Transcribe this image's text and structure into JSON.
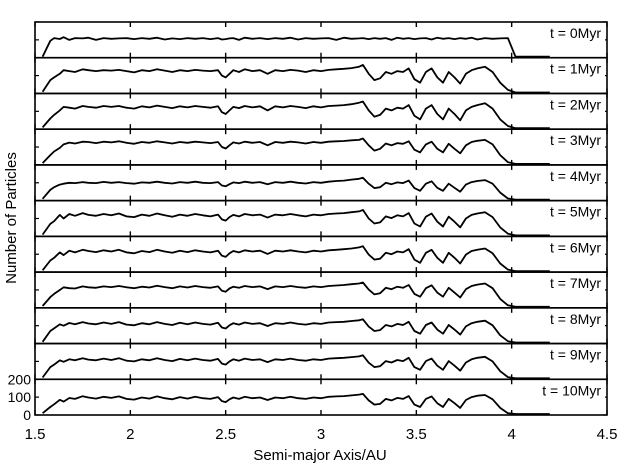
{
  "chart_data": {
    "type": "line",
    "xlabel": "Semi-major Axis/AU",
    "ylabel": "Number of Particles",
    "xlim": [
      1.5,
      4.5
    ],
    "x_ticks": [
      1.5,
      2,
      2.5,
      3,
      3.5,
      4,
      4.5
    ],
    "x_tick_labels": [
      "1.5",
      "2",
      "2.5",
      "3",
      "3.5",
      "4",
      "4.5"
    ],
    "panel_ylim": [
      0,
      200
    ],
    "y_ticks_bottom_panel": [
      0,
      100,
      200
    ],
    "y_tick_labels_bottom_panel": [
      "0",
      "100",
      "200"
    ],
    "x": [
      1.54,
      1.58,
      1.6,
      1.63,
      1.65,
      1.68,
      1.71,
      1.75,
      1.78,
      1.82,
      1.86,
      1.9,
      1.94,
      1.98,
      2.02,
      2.06,
      2.1,
      2.14,
      2.18,
      2.22,
      2.26,
      2.3,
      2.34,
      2.38,
      2.42,
      2.46,
      2.48,
      2.5,
      2.52,
      2.54,
      2.57,
      2.6,
      2.64,
      2.68,
      2.72,
      2.76,
      2.8,
      2.84,
      2.88,
      2.92,
      2.96,
      3.0,
      3.04,
      3.08,
      3.12,
      3.16,
      3.2,
      3.22,
      3.25,
      3.28,
      3.31,
      3.34,
      3.37,
      3.4,
      3.43,
      3.46,
      3.49,
      3.52,
      3.55,
      3.58,
      3.61,
      3.64,
      3.67,
      3.7,
      3.73,
      3.76,
      3.79,
      3.82,
      3.86,
      3.9,
      3.94,
      3.98,
      4.02,
      4.06,
      4.1,
      4.15,
      4.2
    ],
    "series": [
      {
        "name": "t = 0Myr",
        "values": [
          0,
          95,
          110,
          105,
          115,
          100,
          110,
          108,
          112,
          100,
          110,
          106,
          108,
          110,
          104,
          110,
          106,
          112,
          102,
          108,
          104,
          110,
          106,
          110,
          104,
          110,
          102,
          104,
          108,
          110,
          100,
          112,
          106,
          110,
          104,
          110,
          106,
          112,
          102,
          110,
          106,
          108,
          110,
          100,
          112,
          106,
          108,
          110,
          104,
          110,
          106,
          110,
          100,
          112,
          106,
          110,
          104,
          108,
          110,
          102,
          112,
          106,
          110,
          104,
          110,
          106,
          112,
          102,
          110,
          106,
          108,
          110,
          0,
          0,
          0,
          0,
          0
        ]
      },
      {
        "name": "t = 1Myr",
        "values": [
          10,
          75,
          90,
          110,
          130,
          125,
          120,
          135,
          130,
          125,
          130,
          128,
          132,
          125,
          118,
          130,
          125,
          135,
          128,
          120,
          130,
          125,
          132,
          128,
          125,
          130,
          100,
          90,
          110,
          130,
          120,
          135,
          125,
          130,
          110,
          130,
          125,
          132,
          128,
          120,
          130,
          125,
          132,
          135,
          138,
          142,
          150,
          160,
          110,
          75,
          85,
          120,
          110,
          125,
          120,
          140,
          80,
          60,
          120,
          140,
          90,
          60,
          120,
          90,
          55,
          110,
          130,
          140,
          150,
          120,
          60,
          20,
          5,
          3,
          0,
          0,
          0
        ]
      },
      {
        "name": "t = 2Myr",
        "values": [
          10,
          60,
          80,
          105,
          125,
          120,
          115,
          130,
          125,
          120,
          130,
          125,
          130,
          120,
          115,
          128,
          122,
          132,
          125,
          118,
          128,
          122,
          130,
          125,
          120,
          128,
          95,
          85,
          105,
          125,
          118,
          130,
          122,
          128,
          105,
          128,
          122,
          130,
          125,
          118,
          128,
          122,
          130,
          132,
          135,
          140,
          148,
          155,
          105,
          70,
          80,
          115,
          105,
          120,
          115,
          135,
          75,
          55,
          115,
          135,
          85,
          55,
          115,
          85,
          50,
          105,
          125,
          135,
          145,
          115,
          55,
          18,
          5,
          2,
          0,
          0,
          0
        ]
      },
      {
        "name": "t = 3Myr",
        "values": [
          10,
          55,
          75,
          95,
          115,
          125,
          120,
          130,
          128,
          122,
          130,
          126,
          132,
          124,
          118,
          128,
          124,
          132,
          126,
          120,
          128,
          124,
          130,
          126,
          122,
          128,
          100,
          92,
          110,
          126,
          120,
          130,
          124,
          128,
          110,
          128,
          124,
          130,
          126,
          120,
          128,
          124,
          130,
          132,
          134,
          138,
          140,
          148,
          110,
          80,
          90,
          120,
          110,
          122,
          118,
          132,
          85,
          70,
          115,
          130,
          90,
          70,
          118,
          90,
          65,
          110,
          128,
          135,
          140,
          115,
          55,
          15,
          5,
          2,
          0,
          0,
          0
        ]
      },
      {
        "name": "t = 4Myr",
        "values": [
          10,
          60,
          75,
          90,
          95,
          100,
          98,
          104,
          100,
          98,
          105,
          100,
          104,
          98,
          95,
          102,
          100,
          106,
          100,
          96,
          104,
          100,
          106,
          100,
          98,
          104,
          85,
          80,
          92,
          102,
          98,
          106,
          100,
          104,
          92,
          104,
          100,
          106,
          100,
          96,
          104,
          100,
          106,
          110,
          112,
          118,
          122,
          128,
          95,
          70,
          75,
          100,
          92,
          102,
          98,
          112,
          70,
          55,
          95,
          108,
          72,
          55,
          95,
          72,
          50,
          90,
          104,
          110,
          115,
          95,
          45,
          12,
          4,
          2,
          0,
          0,
          0
        ]
      },
      {
        "name": "t = 5Myr",
        "values": [
          10,
          70,
          85,
          120,
          100,
          125,
          115,
          130,
          120,
          115,
          125,
          118,
          128,
          112,
          108,
          122,
          115,
          128,
          118,
          110,
          122,
          115,
          125,
          118,
          112,
          122,
          95,
          88,
          108,
          120,
          112,
          125,
          118,
          122,
          105,
          122,
          118,
          125,
          118,
          112,
          122,
          118,
          125,
          128,
          130,
          135,
          140,
          148,
          100,
          72,
          78,
          112,
          102,
          118,
          112,
          130,
          72,
          55,
          110,
          128,
          82,
          55,
          110,
          82,
          50,
          100,
          120,
          128,
          135,
          108,
          50,
          15,
          5,
          2,
          0,
          0,
          0
        ]
      },
      {
        "name": "t = 6Myr",
        "values": [
          10,
          65,
          80,
          110,
          95,
          120,
          110,
          125,
          118,
          112,
          122,
          115,
          125,
          110,
          105,
          118,
          112,
          125,
          115,
          108,
          120,
          112,
          122,
          115,
          110,
          120,
          92,
          85,
          105,
          118,
          110,
          122,
          115,
          120,
          102,
          120,
          115,
          122,
          115,
          110,
          120,
          115,
          122,
          125,
          128,
          132,
          138,
          145,
          98,
          70,
          75,
          108,
          100,
          115,
          110,
          128,
          70,
          52,
          108,
          125,
          80,
          52,
          108,
          80,
          48,
          98,
          118,
          125,
          132,
          105,
          48,
          14,
          5,
          2,
          0,
          0,
          0
        ]
      },
      {
        "name": "t = 7Myr",
        "values": [
          10,
          60,
          78,
          100,
          115,
          110,
          108,
          120,
          115,
          112,
          120,
          116,
          122,
          115,
          110,
          118,
          114,
          124,
          116,
          110,
          120,
          114,
          122,
          116,
          112,
          120,
          95,
          90,
          108,
          118,
          112,
          122,
          116,
          120,
          105,
          120,
          116,
          122,
          116,
          112,
          120,
          116,
          122,
          125,
          128,
          132,
          136,
          142,
          102,
          75,
          82,
          112,
          104,
          118,
          112,
          128,
          78,
          62,
          110,
          126,
          85,
          62,
          112,
          85,
          58,
          104,
          122,
          130,
          136,
          110,
          50,
          14,
          5,
          2,
          0,
          0,
          0
        ]
      },
      {
        "name": "t = 8Myr",
        "values": [
          10,
          70,
          85,
          108,
          100,
          115,
          108,
          120,
          112,
          108,
          118,
          110,
          120,
          106,
          102,
          114,
          108,
          120,
          110,
          104,
          116,
          108,
          118,
          110,
          106,
          116,
          90,
          84,
          102,
          114,
          106,
          118,
          110,
          114,
          98,
          114,
          110,
          118,
          110,
          106,
          114,
          110,
          118,
          120,
          122,
          126,
          130,
          136,
          95,
          70,
          75,
          104,
          96,
          110,
          104,
          122,
          70,
          55,
          104,
          118,
          78,
          55,
          104,
          78,
          50,
          96,
          114,
          122,
          128,
          102,
          46,
          13,
          4,
          2,
          0,
          0,
          0
        ]
      },
      {
        "name": "t = 9Myr",
        "values": [
          10,
          68,
          82,
          106,
          98,
          112,
          106,
          118,
          110,
          106,
          116,
          108,
          118,
          104,
          100,
          112,
          106,
          118,
          108,
          102,
          114,
          106,
          116,
          108,
          104,
          114,
          88,
          82,
          100,
          112,
          104,
          116,
          108,
          112,
          96,
          112,
          108,
          116,
          108,
          104,
          112,
          108,
          116,
          118,
          120,
          124,
          128,
          134,
          93,
          68,
          73,
          102,
          94,
          108,
          102,
          120,
          68,
          53,
          102,
          116,
          76,
          53,
          102,
          76,
          48,
          94,
          112,
          120,
          126,
          100,
          45,
          12,
          4,
          2,
          0,
          0,
          0
        ]
      },
      {
        "name": "t = 10Myr",
        "values": [
          10,
          45,
          60,
          85,
          75,
          95,
          90,
          105,
          98,
          92,
          102,
          96,
          104,
          90,
          86,
          98,
          92,
          104,
          94,
          88,
          100,
          92,
          102,
          94,
          90,
          100,
          78,
          72,
          88,
          98,
          90,
          102,
          94,
          98,
          84,
          98,
          94,
          102,
          94,
          90,
          98,
          94,
          102,
          104,
          106,
          110,
          114,
          118,
          82,
          58,
          62,
          90,
          82,
          96,
          90,
          106,
          58,
          45,
          90,
          104,
          66,
          45,
          90,
          66,
          40,
          84,
          100,
          108,
          112,
          88,
          40,
          10,
          3,
          1,
          0,
          0,
          0
        ]
      }
    ]
  }
}
